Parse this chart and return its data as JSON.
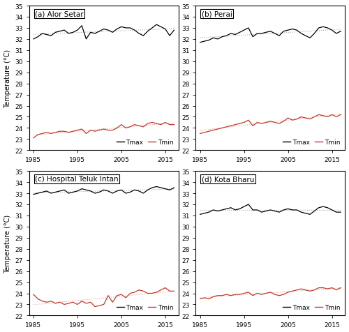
{
  "stations": [
    "(a) Alor Setar",
    "(b) Perai",
    "(c) Hospital Teluk Intan",
    "(d) Kota Bharu"
  ],
  "years": [
    1985,
    1986,
    1987,
    1988,
    1989,
    1990,
    1991,
    1992,
    1993,
    1994,
    1995,
    1996,
    1997,
    1998,
    1999,
    2000,
    2001,
    2002,
    2003,
    2004,
    2005,
    2006,
    2007,
    2008,
    2009,
    2010,
    2011,
    2012,
    2013,
    2014,
    2015,
    2016,
    2017
  ],
  "tmax": {
    "(a) Alor Setar": [
      32.0,
      32.2,
      32.5,
      32.4,
      32.3,
      32.6,
      32.7,
      32.8,
      32.5,
      32.6,
      32.8,
      33.2,
      32.0,
      32.6,
      32.5,
      32.7,
      32.9,
      32.8,
      32.6,
      32.9,
      33.1,
      33.0,
      33.0,
      32.8,
      32.5,
      32.3,
      32.7,
      33.0,
      33.3,
      33.1,
      32.9,
      32.3,
      32.8
    ],
    "(b) Perai": [
      31.7,
      31.8,
      31.9,
      32.1,
      32.0,
      32.2,
      32.3,
      32.5,
      32.4,
      32.6,
      32.8,
      33.0,
      32.2,
      32.5,
      32.5,
      32.6,
      32.7,
      32.5,
      32.3,
      32.7,
      32.8,
      32.9,
      32.8,
      32.5,
      32.3,
      32.1,
      32.5,
      33.0,
      33.1,
      33.0,
      32.8,
      32.5,
      32.7
    ],
    "(c) Hospital Teluk Intan": [
      32.9,
      33.0,
      33.1,
      33.2,
      33.0,
      33.1,
      33.2,
      33.3,
      33.0,
      33.1,
      33.2,
      33.4,
      33.3,
      33.2,
      33.0,
      33.1,
      33.3,
      33.2,
      33.0,
      33.2,
      33.3,
      33.0,
      33.1,
      33.3,
      33.2,
      33.0,
      33.3,
      33.5,
      33.6,
      33.5,
      33.4,
      33.3,
      33.5
    ],
    "(d) Kota Bharu": [
      31.1,
      31.2,
      31.3,
      31.5,
      31.4,
      31.5,
      31.6,
      31.7,
      31.5,
      31.6,
      31.8,
      32.0,
      31.5,
      31.5,
      31.3,
      31.4,
      31.5,
      31.4,
      31.3,
      31.5,
      31.6,
      31.5,
      31.5,
      31.3,
      31.2,
      31.1,
      31.4,
      31.7,
      31.8,
      31.7,
      31.5,
      31.3,
      31.3
    ]
  },
  "tmin": {
    "(a) Alor Setar": [
      23.1,
      23.4,
      23.5,
      23.6,
      23.5,
      23.6,
      23.7,
      23.7,
      23.6,
      23.7,
      23.8,
      23.9,
      23.5,
      23.8,
      23.7,
      23.8,
      23.9,
      23.8,
      23.8,
      24.0,
      24.3,
      24.0,
      24.1,
      24.3,
      24.2,
      24.1,
      24.4,
      24.5,
      24.4,
      24.3,
      24.5,
      24.3,
      24.3
    ],
    "(b) Perai": [
      23.5,
      23.6,
      23.7,
      23.8,
      23.9,
      24.0,
      24.1,
      24.2,
      24.3,
      24.4,
      24.5,
      24.7,
      24.2,
      24.5,
      24.4,
      24.5,
      24.6,
      24.5,
      24.4,
      24.6,
      24.9,
      24.7,
      24.8,
      25.0,
      24.9,
      24.8,
      25.0,
      25.2,
      25.1,
      25.0,
      25.2,
      25.0,
      25.2
    ],
    "(c) Hospital Teluk Intan": [
      23.9,
      23.5,
      23.3,
      23.2,
      23.3,
      23.1,
      23.2,
      23.0,
      23.1,
      23.2,
      23.0,
      23.3,
      23.1,
      23.2,
      22.8,
      22.9,
      23.0,
      23.8,
      23.2,
      23.8,
      23.9,
      23.6,
      24.0,
      24.1,
      24.3,
      24.2,
      24.0,
      24.0,
      24.1,
      24.3,
      24.5,
      24.2,
      24.2
    ],
    "(d) Kota Bharu": [
      23.5,
      23.6,
      23.5,
      23.7,
      23.8,
      23.8,
      23.9,
      23.8,
      23.9,
      23.9,
      24.0,
      24.1,
      23.8,
      24.0,
      23.9,
      24.0,
      24.1,
      23.9,
      23.8,
      23.9,
      24.1,
      24.2,
      24.3,
      24.4,
      24.3,
      24.2,
      24.3,
      24.5,
      24.5,
      24.4,
      24.5,
      24.3,
      24.5
    ]
  },
  "ylim": [
    22,
    35
  ],
  "yticks": [
    22,
    23,
    24,
    25,
    26,
    27,
    28,
    29,
    30,
    31,
    32,
    33,
    34,
    35
  ],
  "xticks": [
    1985,
    1995,
    2005,
    2015
  ],
  "xlim": [
    1984,
    2018
  ],
  "ylabel": "Temperature (°C)",
  "tmax_color": "#000000",
  "tmin_color": "#c0392b",
  "tmax_trend_color": "#aaaaaa",
  "tmin_trend_color": "#e8a0a0",
  "fig_width": 5.0,
  "fig_height": 4.77,
  "tick_fontsize": 6.5,
  "label_fontsize": 7.0,
  "title_fontsize": 7.5
}
